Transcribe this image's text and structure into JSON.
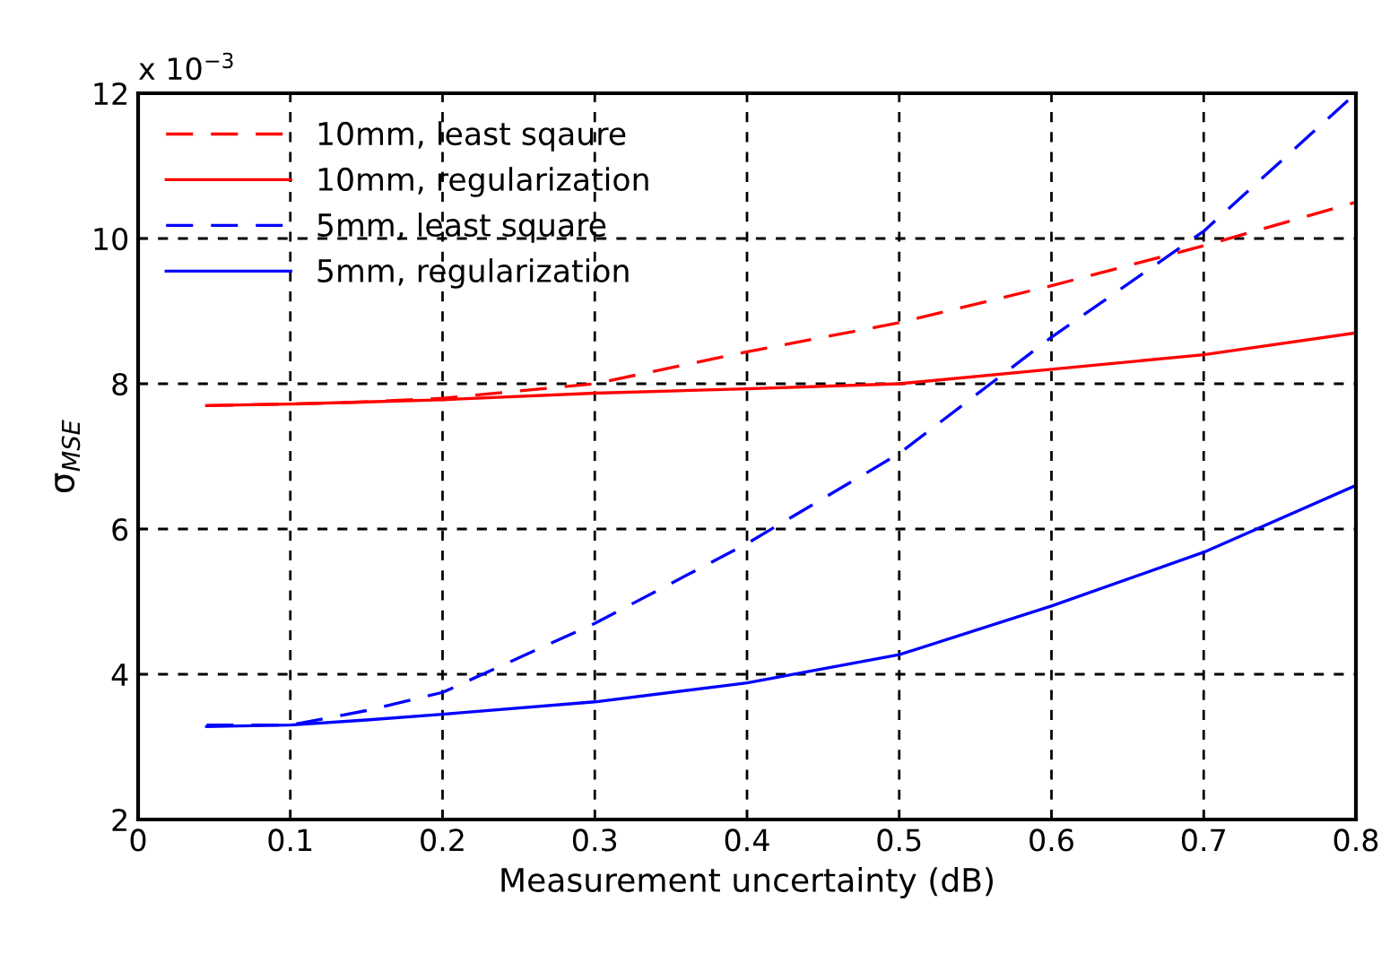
{
  "chart_data": {
    "type": "line",
    "xlabel": "Measurement uncertainty (dB)",
    "ylabel": "σ$_{MSE}$",
    "annotations": [
      "x 10$^{−3}$"
    ],
    "x": [
      0.045,
      0.1,
      0.15,
      0.2,
      0.3,
      0.4,
      0.5,
      0.6,
      0.7,
      0.8
    ],
    "series": [
      {
        "name": "10mm, least sqaure",
        "color": "#ff0000",
        "line_style": "dashed",
        "values": [
          7.7,
          7.72,
          7.75,
          7.8,
          8.0,
          8.44,
          8.84,
          9.35,
          9.9,
          10.5
        ]
      },
      {
        "name": "10mm, regularization",
        "color": "#ff0000",
        "line_style": "solid",
        "values": [
          7.7,
          7.72,
          7.75,
          7.78,
          7.87,
          7.93,
          8.0,
          8.2,
          8.4,
          8.7
        ]
      },
      {
        "name": "5mm, least square",
        "color": "#0000ff",
        "line_style": "dashed",
        "values": [
          3.3,
          3.3,
          3.5,
          3.75,
          4.7,
          5.8,
          7.04,
          8.64,
          10.1,
          12.0
        ]
      },
      {
        "name": "5mm, regularization",
        "color": "#0000ff",
        "line_style": "solid",
        "values": [
          3.28,
          3.3,
          3.37,
          3.45,
          3.62,
          3.88,
          4.27,
          4.94,
          5.68,
          6.6
        ]
      }
    ],
    "xlim": [
      0,
      0.8
    ],
    "xticks": [
      0,
      0.1,
      0.2,
      0.3,
      0.4,
      0.5,
      0.6,
      0.7,
      0.8
    ],
    "ylim": [
      2,
      12
    ],
    "yticks": [
      2,
      4,
      6,
      8,
      10,
      12
    ],
    "grid": true,
    "legend": "top left",
    "marker": "none"
  }
}
